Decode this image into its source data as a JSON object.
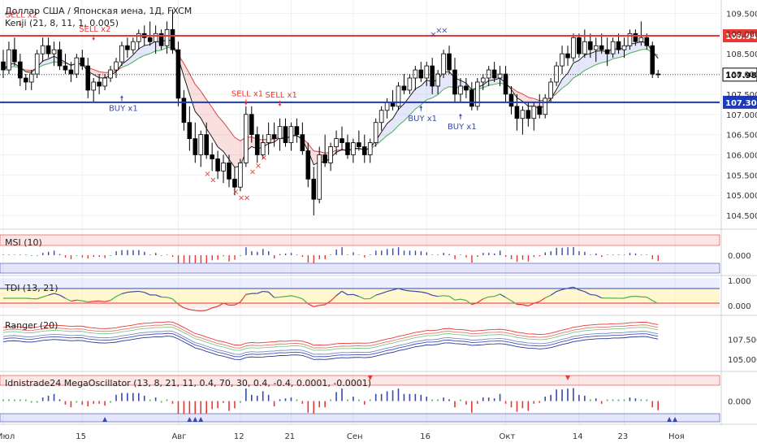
{
  "chart_data": {
    "type": "candlestick",
    "title": "Доллар США / Японская иена, 1Д, FXCM",
    "indicator_label": "Kenji (21, 8, 11, 1, 0.005)",
    "price_axis_ticks": [
      "109.500",
      "109.000",
      "108.500",
      "108.000",
      "107.500",
      "107.000",
      "106.500",
      "106.000",
      "105.500",
      "105.000",
      "104.500"
    ],
    "price_range": [
      104.2,
      109.75
    ],
    "x_labels": [
      {
        "i": 0,
        "label": "Июл"
      },
      {
        "i": 14,
        "label": "15"
      },
      {
        "i": 31,
        "label": "Авг"
      },
      {
        "i": 42,
        "label": "12"
      },
      {
        "i": 51,
        "label": "21"
      },
      {
        "i": 62,
        "label": "Сен"
      },
      {
        "i": 75,
        "label": "16"
      },
      {
        "i": 89,
        "label": "Окт"
      },
      {
        "i": 102,
        "label": "14"
      },
      {
        "i": 110,
        "label": "23"
      },
      {
        "i": 119,
        "label": "Ноя"
      }
    ],
    "lines": [
      {
        "price": 108.945,
        "label": "108.945",
        "color": "#e53935"
      },
      {
        "price": 107.3,
        "label": "107.300",
        "color": "#1e3ab8"
      }
    ],
    "last_price": {
      "price": 107.984,
      "label": "107.984"
    },
    "signals": [
      {
        "i": 3,
        "price": 109.2,
        "text": "SELL x2",
        "dir": "sell"
      },
      {
        "i": 16,
        "price": 108.85,
        "text": "SELL x2",
        "dir": "sell"
      },
      {
        "i": 21,
        "price": 107.45,
        "text": "BUY x1",
        "dir": "buy"
      },
      {
        "i": 43,
        "price": 107.25,
        "text": "SELL x1",
        "dir": "sell"
      },
      {
        "i": 49,
        "price": 107.22,
        "text": "SELL x1",
        "dir": "sell"
      },
      {
        "i": 74,
        "price": 107.2,
        "text": "BUY x1",
        "dir": "buy"
      },
      {
        "i": 81,
        "price": 107.0,
        "text": "BUY x1",
        "dir": "buy"
      }
    ],
    "crosses": [
      {
        "i": 36,
        "price": 105.55,
        "color": "#e53935"
      },
      {
        "i": 37,
        "price": 105.4,
        "color": "#e53935"
      },
      {
        "i": 41,
        "price": 105.1,
        "color": "#e53935"
      },
      {
        "i": 42,
        "price": 104.95,
        "color": "#e53935"
      },
      {
        "i": 43,
        "price": 104.95,
        "color": "#e53935"
      },
      {
        "i": 44,
        "price": 105.6,
        "color": "#e53935"
      },
      {
        "i": 45,
        "price": 105.75,
        "color": "#e53935"
      },
      {
        "i": 46,
        "price": 105.95,
        "color": "#e53935"
      },
      {
        "i": 76,
        "price": 109.0,
        "color": "#3949ab"
      },
      {
        "i": 77,
        "price": 109.1,
        "color": "#3949ab"
      },
      {
        "i": 78,
        "price": 109.1,
        "color": "#3949ab"
      }
    ],
    "candles": [
      [
        108.3,
        108.6,
        107.9,
        108.1
      ],
      [
        108.1,
        108.8,
        108.0,
        108.6
      ],
      [
        108.6,
        108.9,
        108.2,
        108.3
      ],
      [
        108.3,
        108.5,
        107.7,
        107.9
      ],
      [
        107.9,
        108.0,
        107.6,
        107.8
      ],
      [
        107.8,
        108.1,
        107.6,
        108.0
      ],
      [
        108.0,
        108.6,
        107.9,
        108.5
      ],
      [
        108.5,
        108.9,
        108.3,
        108.7
      ],
      [
        108.7,
        108.9,
        108.4,
        108.5
      ],
      [
        108.5,
        108.8,
        108.2,
        108.6
      ],
      [
        108.6,
        108.8,
        108.1,
        108.2
      ],
      [
        108.2,
        108.5,
        108.0,
        108.1
      ],
      [
        108.1,
        108.3,
        107.8,
        108.0
      ],
      [
        108.0,
        108.5,
        107.9,
        108.4
      ],
      [
        108.4,
        108.6,
        108.1,
        108.2
      ],
      [
        108.2,
        108.4,
        107.4,
        107.6
      ],
      [
        107.6,
        107.9,
        107.3,
        107.8
      ],
      [
        107.8,
        108.0,
        107.5,
        107.7
      ],
      [
        107.7,
        108.0,
        107.6,
        107.9
      ],
      [
        107.9,
        108.2,
        107.8,
        108.1
      ],
      [
        108.1,
        108.4,
        107.9,
        108.3
      ],
      [
        108.3,
        108.8,
        108.2,
        108.7
      ],
      [
        108.7,
        108.9,
        108.4,
        108.6
      ],
      [
        108.6,
        108.9,
        108.5,
        108.8
      ],
      [
        108.8,
        109.1,
        108.6,
        109.0
      ],
      [
        109.0,
        109.2,
        108.7,
        108.9
      ],
      [
        108.9,
        109.3,
        108.7,
        108.8
      ],
      [
        108.8,
        109.2,
        108.5,
        109.0
      ],
      [
        109.0,
        109.1,
        108.6,
        108.7
      ],
      [
        108.7,
        109.3,
        108.5,
        109.1
      ],
      [
        109.1,
        109.6,
        108.5,
        108.6
      ],
      [
        108.6,
        108.8,
        107.2,
        107.4
      ],
      [
        107.4,
        107.6,
        106.6,
        106.8
      ],
      [
        106.8,
        107.2,
        106.1,
        106.4
      ],
      [
        106.4,
        106.8,
        105.8,
        106.0
      ],
      [
        106.0,
        106.6,
        105.7,
        106.5
      ],
      [
        106.5,
        106.8,
        105.9,
        106.0
      ],
      [
        106.0,
        106.3,
        105.6,
        105.9
      ],
      [
        105.9,
        106.1,
        105.4,
        105.6
      ],
      [
        105.6,
        106.0,
        105.3,
        105.8
      ],
      [
        105.8,
        106.0,
        105.2,
        105.4
      ],
      [
        105.4,
        105.7,
        105.0,
        105.2
      ],
      [
        105.2,
        105.9,
        105.1,
        105.8
      ],
      [
        105.8,
        107.2,
        105.7,
        107.0
      ],
      [
        107.0,
        107.2,
        106.3,
        106.5
      ],
      [
        106.5,
        106.7,
        105.8,
        106.0
      ],
      [
        106.0,
        106.5,
        105.9,
        106.3
      ],
      [
        106.3,
        106.8,
        106.0,
        106.5
      ],
      [
        106.5,
        106.8,
        106.2,
        106.4
      ],
      [
        106.4,
        106.9,
        106.1,
        106.7
      ],
      [
        106.7,
        106.9,
        106.2,
        106.3
      ],
      [
        106.3,
        106.8,
        106.1,
        106.7
      ],
      [
        106.7,
        106.9,
        106.3,
        106.5
      ],
      [
        106.5,
        106.8,
        106.0,
        106.1
      ],
      [
        106.1,
        106.3,
        105.2,
        105.4
      ],
      [
        105.4,
        105.7,
        104.5,
        104.9
      ],
      [
        104.9,
        106.2,
        104.8,
        106.0
      ],
      [
        106.0,
        106.5,
        105.7,
        105.8
      ],
      [
        105.8,
        106.3,
        105.6,
        106.2
      ],
      [
        106.2,
        106.6,
        106.0,
        106.4
      ],
      [
        106.4,
        106.7,
        106.1,
        106.3
      ],
      [
        106.3,
        106.5,
        105.9,
        106.0
      ],
      [
        106.0,
        106.4,
        105.8,
        106.3
      ],
      [
        106.3,
        106.6,
        106.1,
        106.2
      ],
      [
        106.2,
        106.5,
        105.8,
        106.0
      ],
      [
        106.0,
        106.4,
        105.8,
        106.3
      ],
      [
        106.3,
        106.9,
        106.2,
        106.8
      ],
      [
        106.8,
        107.2,
        106.6,
        107.1
      ],
      [
        107.1,
        107.4,
        106.9,
        107.3
      ],
      [
        107.3,
        107.6,
        107.1,
        107.2
      ],
      [
        107.2,
        107.8,
        107.1,
        107.7
      ],
      [
        107.7,
        108.0,
        107.5,
        107.6
      ],
      [
        107.6,
        108.0,
        107.5,
        107.9
      ],
      [
        107.9,
        108.2,
        107.6,
        108.1
      ],
      [
        108.1,
        108.3,
        107.8,
        107.9
      ],
      [
        107.9,
        108.3,
        107.7,
        108.2
      ],
      [
        108.2,
        108.4,
        107.5,
        107.7
      ],
      [
        107.7,
        108.1,
        107.5,
        108.0
      ],
      [
        108.0,
        108.6,
        107.9,
        108.5
      ],
      [
        108.5,
        108.7,
        108.0,
        108.1
      ],
      [
        108.1,
        108.4,
        107.3,
        107.5
      ],
      [
        107.5,
        107.9,
        107.3,
        107.7
      ],
      [
        107.7,
        107.9,
        107.4,
        107.6
      ],
      [
        107.6,
        107.8,
        107.1,
        107.2
      ],
      [
        107.2,
        107.9,
        107.1,
        107.8
      ],
      [
        107.8,
        108.0,
        107.6,
        107.9
      ],
      [
        107.9,
        108.2,
        107.7,
        108.1
      ],
      [
        108.1,
        108.3,
        107.8,
        107.9
      ],
      [
        107.9,
        108.2,
        107.7,
        108.0
      ],
      [
        108.0,
        108.2,
        107.3,
        107.5
      ],
      [
        107.5,
        107.7,
        107.0,
        107.2
      ],
      [
        107.2,
        107.5,
        106.6,
        106.9
      ],
      [
        106.9,
        107.2,
        106.5,
        107.1
      ],
      [
        107.1,
        107.3,
        106.7,
        106.9
      ],
      [
        106.9,
        107.3,
        106.6,
        107.2
      ],
      [
        107.2,
        107.5,
        106.9,
        107.0
      ],
      [
        107.0,
        107.5,
        106.9,
        107.4
      ],
      [
        107.4,
        107.9,
        107.3,
        107.8
      ],
      [
        107.8,
        108.3,
        107.7,
        108.2
      ],
      [
        108.2,
        108.7,
        108.0,
        108.5
      ],
      [
        108.5,
        108.7,
        108.2,
        108.4
      ],
      [
        108.4,
        109.0,
        108.3,
        108.9
      ],
      [
        108.9,
        109.0,
        108.4,
        108.5
      ],
      [
        108.5,
        109.1,
        108.4,
        108.8
      ],
      [
        108.8,
        109.0,
        108.4,
        108.6
      ],
      [
        108.6,
        108.9,
        108.3,
        108.7
      ],
      [
        108.7,
        109.0,
        108.5,
        108.6
      ],
      [
        108.6,
        108.9,
        108.2,
        108.5
      ],
      [
        108.5,
        108.9,
        108.4,
        108.8
      ],
      [
        108.8,
        109.0,
        108.5,
        108.6
      ],
      [
        108.6,
        108.9,
        108.4,
        108.7
      ],
      [
        108.7,
        109.1,
        108.6,
        109.0
      ],
      [
        109.0,
        109.1,
        108.7,
        108.8
      ],
      [
        108.8,
        109.3,
        108.7,
        108.9
      ],
      [
        108.9,
        109.0,
        108.6,
        108.7
      ],
      [
        108.7,
        108.8,
        107.9,
        108.0
      ],
      [
        108.0,
        108.1,
        107.9,
        107.98
      ]
    ],
    "panels": [
      {
        "name": "msi",
        "label": "MSI (10)",
        "y_tick": "0.000"
      },
      {
        "name": "tdi",
        "label": "TDI (13, 21)",
        "y_ticks": [
          "1.000",
          "0.000"
        ]
      },
      {
        "name": "ranger",
        "label": "Ranger (20)",
        "y_ticks": [
          "107.500",
          "105.000"
        ]
      },
      {
        "name": "mega",
        "label": "Idnistrade24 MegaOscillator (13, 8, 21, 11, 0.4, 70, 30, 0.4, -0.4, 0.0001, -0.0001)",
        "y_tick": "0.000"
      }
    ]
  },
  "colors": {
    "up": "#ffffff",
    "down": "#000000",
    "resistance": "#e53935",
    "support": "#1e3ab8",
    "sell": "#e53935",
    "buy": "#3949ab"
  }
}
